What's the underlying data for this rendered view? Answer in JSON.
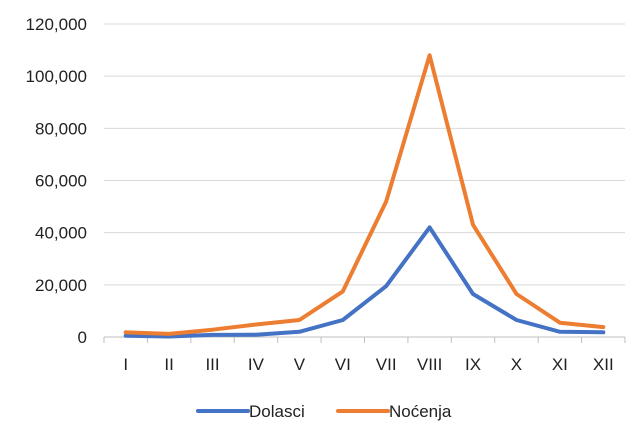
{
  "chart_data": {
    "type": "line",
    "categories": [
      "I",
      "II",
      "III",
      "IV",
      "V",
      "VI",
      "VII",
      "VIII",
      "IX",
      "X",
      "XI",
      "XII"
    ],
    "series": [
      {
        "name": "Dolasci",
        "color": "#4472C4",
        "values": [
          500,
          200,
          800,
          900,
          2000,
          6500,
          19500,
          42000,
          16500,
          6500,
          2000,
          1800
        ]
      },
      {
        "name": "Noćenja",
        "color": "#ED7D31",
        "values": [
          1800,
          1200,
          2800,
          4800,
          6500,
          17500,
          52000,
          108000,
          43000,
          16500,
          5500,
          3800
        ]
      }
    ],
    "ylim": [
      0,
      120000
    ],
    "yticks": [
      0,
      20000,
      40000,
      60000,
      80000,
      100000,
      120000
    ],
    "ytick_labels": [
      "0",
      "20,000",
      "40,000",
      "60,000",
      "80,000",
      "100,000",
      "120,000"
    ],
    "grid": true,
    "legend_position": "bottom",
    "xlabel": "",
    "ylabel": ""
  }
}
